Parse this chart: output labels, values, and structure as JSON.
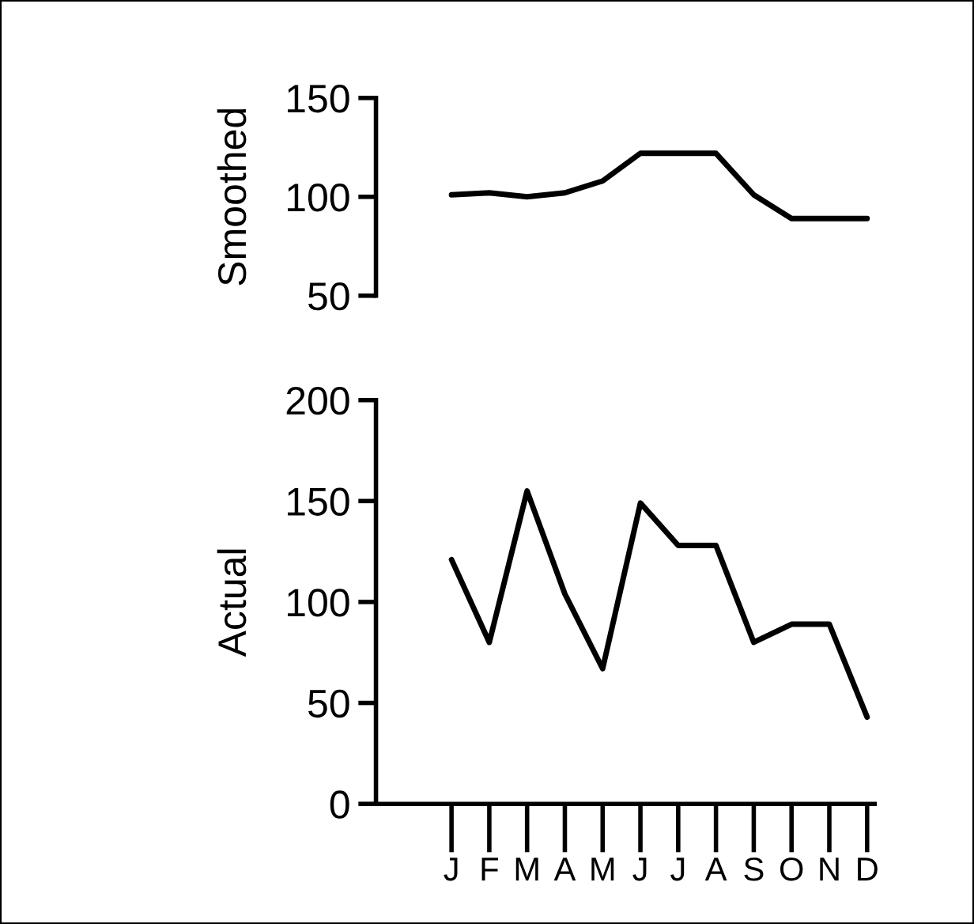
{
  "chart_data": [
    {
      "type": "line",
      "ylabel": "Smoothed",
      "categories": [
        null,
        null,
        null,
        null,
        null,
        null,
        null,
        null,
        null,
        null,
        null,
        null
      ],
      "values": [
        101,
        102,
        100,
        102,
        108,
        122,
        122,
        122,
        101,
        89,
        89,
        89
      ],
      "color": "#000000",
      "ylim": [
        50,
        150
      ],
      "yticks": [
        50,
        100,
        150
      ],
      "tick_labels": "y"
    },
    {
      "type": "line",
      "ylabel": "Actual",
      "categories": [
        "J",
        "F",
        "M",
        "A",
        "M",
        "J",
        "J",
        "A",
        "S",
        "O",
        "N",
        "D"
      ],
      "values": [
        121,
        80,
        155,
        104,
        67,
        149,
        128,
        128,
        80,
        89,
        89,
        43
      ],
      "color": "#000000",
      "ylim": [
        0,
        200
      ],
      "yticks": [
        0,
        50,
        100,
        150,
        200
      ]
    }
  ]
}
